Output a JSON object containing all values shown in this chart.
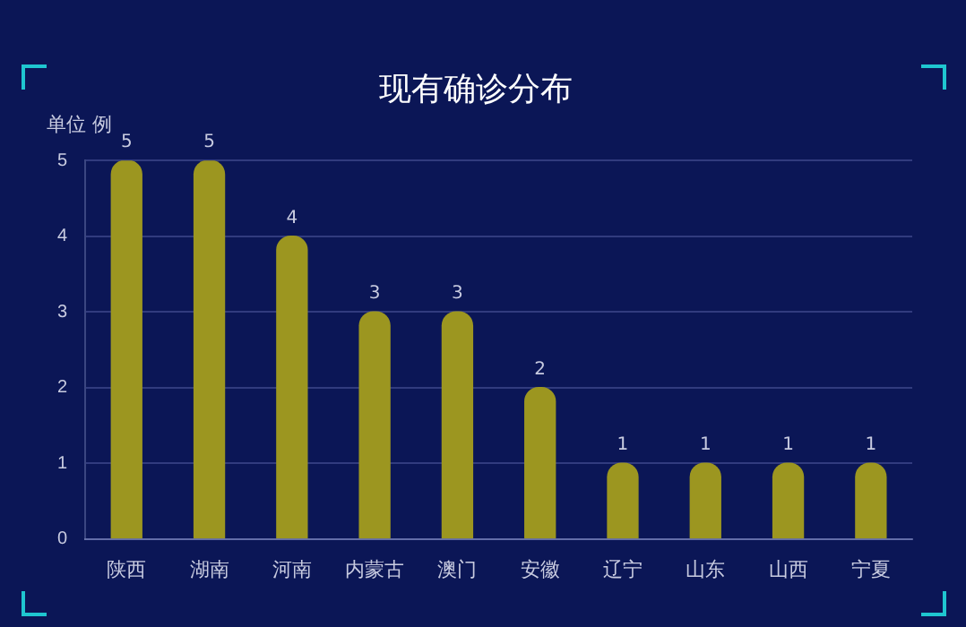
{
  "chart_data": {
    "type": "bar",
    "title": "现有确诊分布",
    "ylabel": "单位 例",
    "categories": [
      "陕西",
      "湖南",
      "河南",
      "内蒙古",
      "澳门",
      "安徽",
      "辽宁",
      "山东",
      "山西",
      "宁夏"
    ],
    "values": [
      5,
      5,
      4,
      3,
      3,
      2,
      1,
      1,
      1,
      1
    ],
    "color": "#9c9620",
    "ylim": [
      0,
      5
    ],
    "yticks": [
      0,
      1,
      2,
      3,
      4,
      5
    ],
    "grid": "y",
    "data_labels": true
  }
}
